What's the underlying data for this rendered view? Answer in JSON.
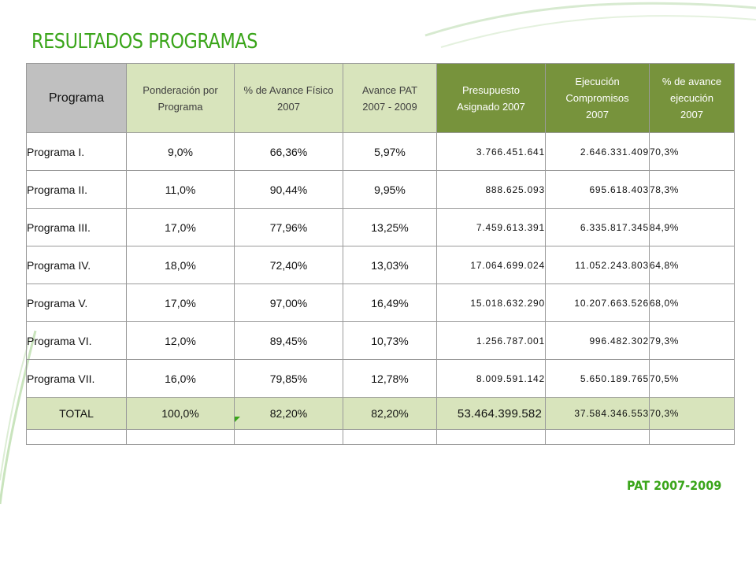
{
  "slide": {
    "title": "RESULTADOS PROGRAMAS",
    "footer": "PAT 2007-2009",
    "accent_color": "#3aa51a",
    "header_light_green": "#d8e4bc",
    "header_dark_green": "#77933c",
    "header_gray": "#c0c0c0"
  },
  "table": {
    "headers": {
      "programa": "Programa",
      "ponderacion": [
        "Ponderación por",
        "Programa"
      ],
      "avance_fisico": [
        "% de Avance Físico",
        "2007"
      ],
      "avance_pat": [
        "Avance PAT",
        "2007 - 2009"
      ],
      "presupuesto": [
        "Presupuesto",
        "Asignado 2007"
      ],
      "ejecucion": [
        "Ejecución",
        "Compromisos",
        "2007"
      ],
      "pct_ejecucion": [
        "% de avance",
        "ejecución",
        "2007"
      ]
    },
    "rows": [
      [
        "Programa I.",
        "9,0%",
        "66,36%",
        "5,97%",
        "3.766.451.641",
        "2.646.331.409",
        "70,3%"
      ],
      [
        "Programa II.",
        "11,0%",
        "90,44%",
        "9,95%",
        "888.625.093",
        "695.618.403",
        "78,3%"
      ],
      [
        "Programa III.",
        "17,0%",
        "77,96%",
        "13,25%",
        "7.459.613.391",
        "6.335.817.345",
        "84,9%"
      ],
      [
        "Programa IV.",
        "18,0%",
        "72,40%",
        "13,03%",
        "17.064.699.024",
        "11.052.243.803",
        "64,8%"
      ],
      [
        "Programa V.",
        "17,0%",
        "97,00%",
        "16,49%",
        "15.018.632.290",
        "10.207.663.526",
        "68,0%"
      ],
      [
        "Programa VI.",
        "12,0%",
        "89,45%",
        "10,73%",
        "1.256.787.001",
        "996.482.302",
        "79,3%"
      ],
      [
        "Programa VII.",
        "16,0%",
        "79,85%",
        "12,78%",
        "8.009.591.142",
        "5.650.189.765",
        "70,5%"
      ]
    ],
    "total": [
      "TOTAL",
      "100,0%",
      "82,20%",
      "82,20%",
      "53.464.399.582",
      "37.584.346.553",
      "70,3%"
    ]
  }
}
